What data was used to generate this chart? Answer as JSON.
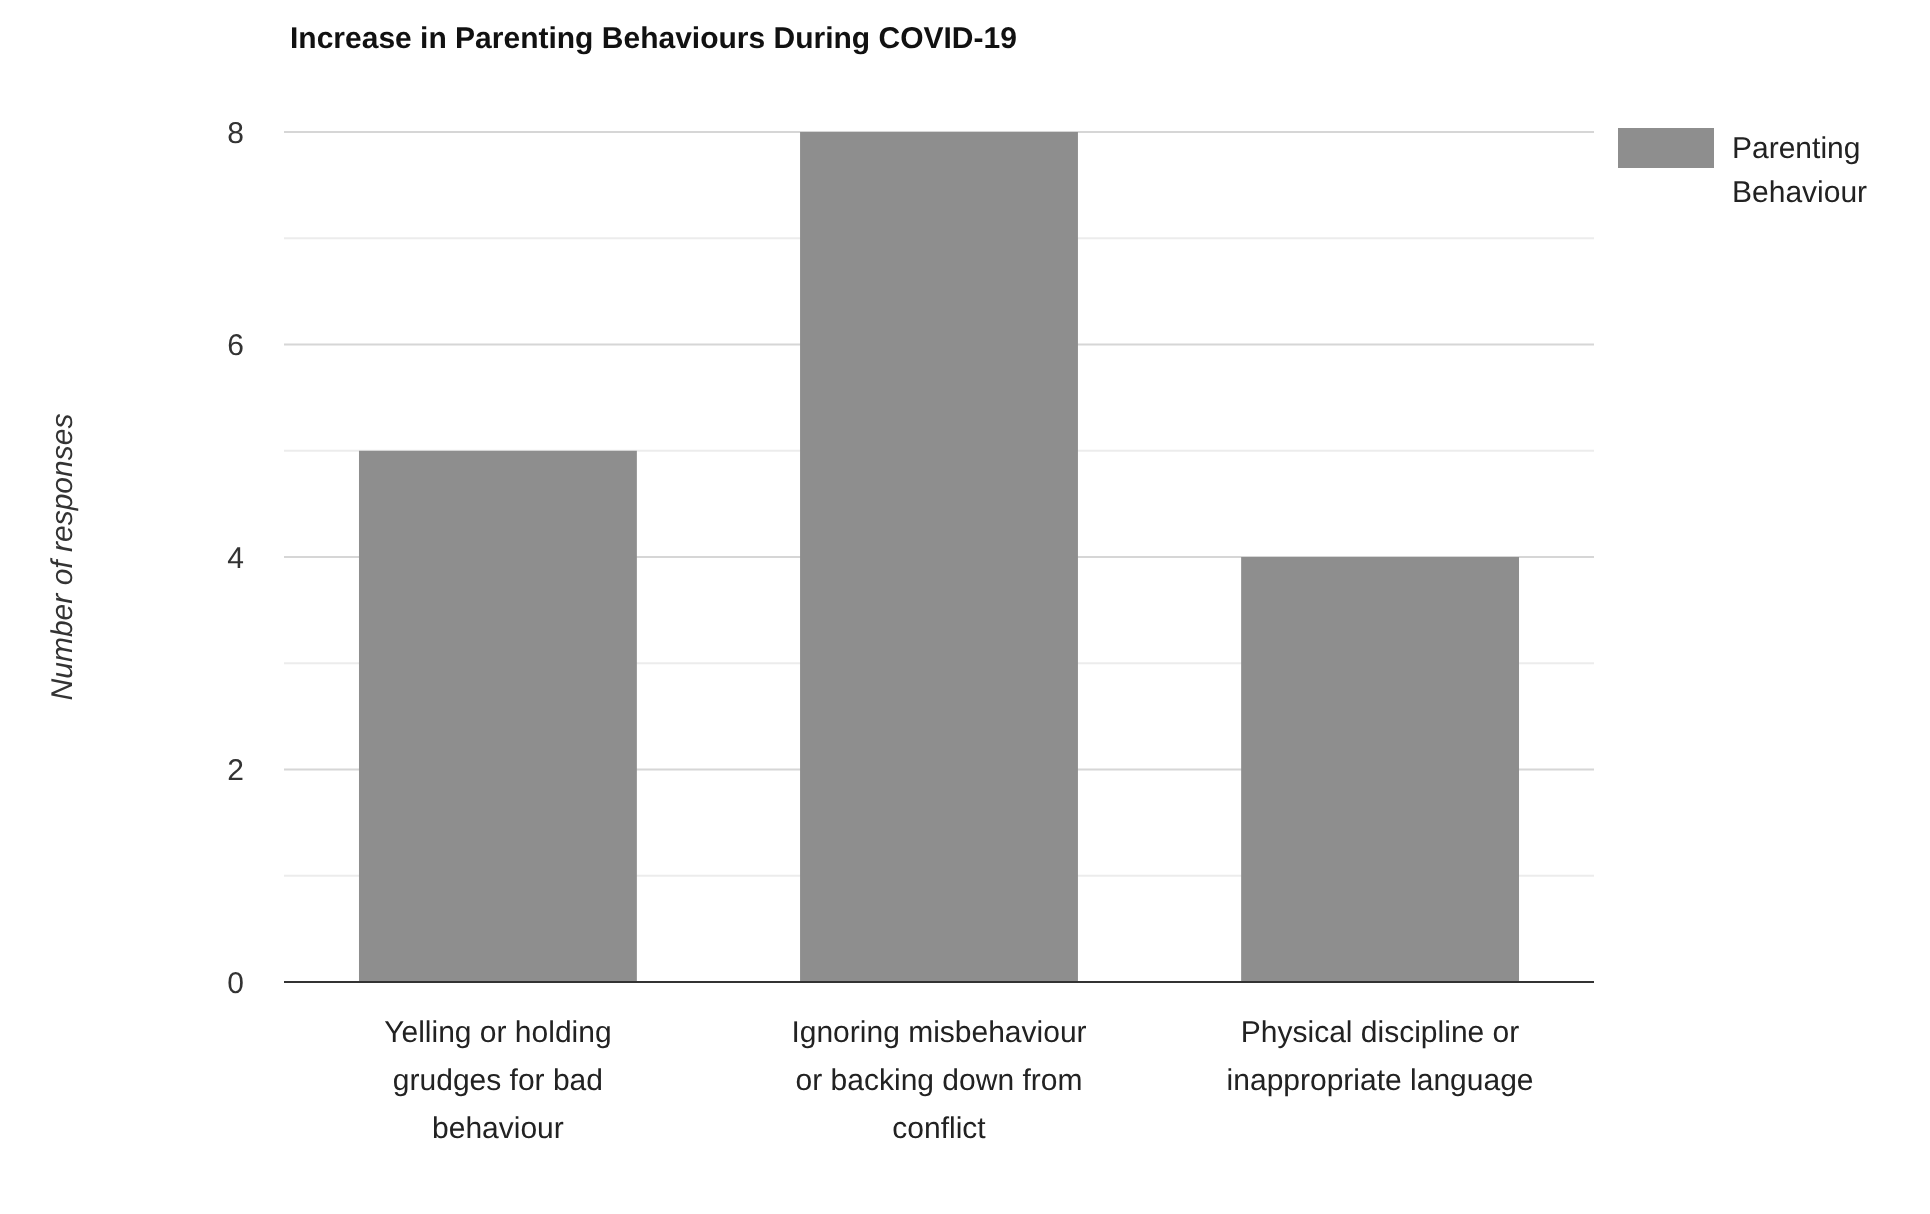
{
  "chart_data": {
    "type": "bar",
    "title": "Increase in Parenting Behaviours During COVID-19",
    "ylabel": "Number of responses",
    "categories": [
      "Yelling or holding grudges for bad behaviour",
      "Ignoring misbehaviour or backing down from conflict",
      "Physical discipline or inappropriate language"
    ],
    "series": [
      {
        "name": "Parenting Behaviour",
        "color": "#8e8e8e",
        "values": [
          5,
          8,
          4
        ]
      }
    ],
    "ylim": [
      0,
      8
    ],
    "yticks": [
      0,
      {
        "value": 1,
        "label": null
      },
      2,
      {
        "value": 3,
        "label": null
      },
      4,
      {
        "value": 5,
        "label": null
      },
      6,
      {
        "value": 7,
        "label": null
      },
      8
    ],
    "grid": true,
    "legend": "top right"
  }
}
